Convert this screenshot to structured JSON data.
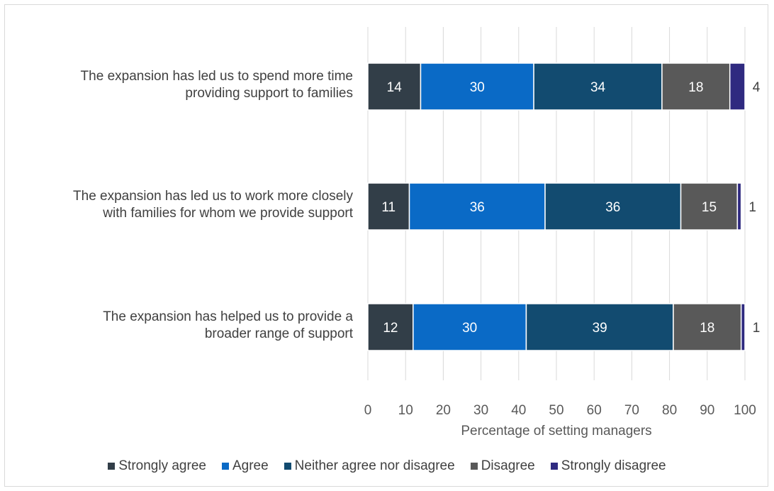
{
  "chart_data": {
    "type": "bar",
    "orientation": "horizontal",
    "stacked": true,
    "categories": [
      "The expansion has led us to spend more time providing support to families",
      "The expansion has led us to work more closely with families for whom we provide support",
      "The expansion has helped us to provide a broader range of support"
    ],
    "category_lines": [
      [
        "The expansion has led us to spend more time",
        "providing support to families"
      ],
      [
        "The expansion has led us to work more closely",
        "with families for whom we provide support"
      ],
      [
        "The expansion has helped us to provide a",
        "broader range of support"
      ]
    ],
    "series": [
      {
        "name": "Strongly agree",
        "color": "#323e48",
        "values": [
          14,
          11,
          12
        ]
      },
      {
        "name": "Agree",
        "color": "#0a6ac6",
        "values": [
          30,
          36,
          30
        ]
      },
      {
        "name": "Neither agree nor disagree",
        "color": "#124b70",
        "values": [
          34,
          36,
          39
        ]
      },
      {
        "name": "Disagree",
        "color": "#595959",
        "values": [
          18,
          15,
          18
        ]
      },
      {
        "name": "Strongly disagree",
        "color": "#2f2a80",
        "values": [
          4,
          1,
          1
        ]
      }
    ],
    "xlabel": "Percentage of setting managers",
    "xlim": [
      0,
      100
    ],
    "xticks": [
      "0",
      "10",
      "20",
      "30",
      "40",
      "50",
      "60",
      "70",
      "80",
      "90",
      "100"
    ],
    "grid": "vertical",
    "legend": "bottom"
  }
}
